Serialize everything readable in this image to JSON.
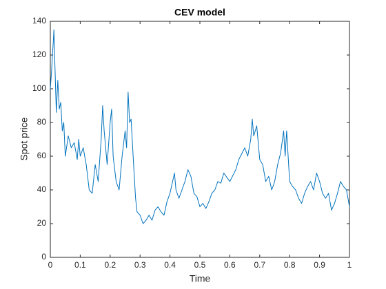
{
  "chart_data": {
    "type": "line",
    "title": "CEV model",
    "xlabel": "Time",
    "ylabel": "Spot price",
    "x": [
      0,
      0.004,
      0.007,
      0.01,
      0.012,
      0.016,
      0.02,
      0.025,
      0.03,
      0.035,
      0.04,
      0.045,
      0.05,
      0.06,
      0.07,
      0.08,
      0.09,
      0.095,
      0.1,
      0.11,
      0.12,
      0.13,
      0.14,
      0.15,
      0.16,
      0.17,
      0.175,
      0.18,
      0.19,
      0.2,
      0.205,
      0.21,
      0.22,
      0.23,
      0.24,
      0.25,
      0.255,
      0.26,
      0.265,
      0.27,
      0.28,
      0.285,
      0.29,
      0.3,
      0.31,
      0.32,
      0.33,
      0.34,
      0.35,
      0.36,
      0.37,
      0.38,
      0.39,
      0.4,
      0.415,
      0.42,
      0.43,
      0.44,
      0.45,
      0.46,
      0.47,
      0.48,
      0.49,
      0.5,
      0.51,
      0.52,
      0.53,
      0.54,
      0.55,
      0.56,
      0.57,
      0.58,
      0.6,
      0.62,
      0.63,
      0.65,
      0.66,
      0.67,
      0.675,
      0.68,
      0.69,
      0.7,
      0.71,
      0.72,
      0.73,
      0.74,
      0.75,
      0.76,
      0.77,
      0.78,
      0.785,
      0.79,
      0.8,
      0.81,
      0.82,
      0.83,
      0.84,
      0.85,
      0.86,
      0.87,
      0.88,
      0.89,
      0.9,
      0.91,
      0.92,
      0.93,
      0.94,
      0.95,
      0.96,
      0.97,
      0.98,
      0.99,
      1
    ],
    "series": [
      {
        "name": "Spot price",
        "color": "#0072bd",
        "values": [
          100,
          110,
          120,
          128,
          135,
          110,
          86,
          105,
          88,
          92,
          75,
          80,
          60,
          72,
          65,
          68,
          58,
          70,
          60,
          65,
          55,
          40,
          38,
          55,
          45,
          70,
          90,
          75,
          55,
          80,
          88,
          60,
          45,
          40,
          60,
          75,
          65,
          98,
          80,
          82,
          50,
          35,
          27,
          25,
          20,
          22,
          25,
          22,
          28,
          30,
          27,
          25,
          33,
          38,
          50,
          40,
          35,
          40,
          45,
          52,
          48,
          38,
          36,
          30,
          32,
          29,
          33,
          38,
          40,
          45,
          44,
          50,
          45,
          52,
          58,
          65,
          60,
          70,
          82,
          72,
          78,
          58,
          55,
          45,
          48,
          40,
          45,
          55,
          62,
          75,
          60,
          75,
          45,
          42,
          40,
          35,
          32,
          38,
          42,
          45,
          40,
          50,
          45,
          38,
          35,
          38,
          28,
          32,
          38,
          45,
          42,
          40,
          30
        ]
      }
    ],
    "xlim": [
      0,
      1
    ],
    "xticks": [
      0,
      0.1,
      0.2,
      0.3,
      0.4,
      0.5,
      0.6,
      0.7,
      0.8,
      0.9,
      1
    ],
    "ylim": [
      0,
      140
    ],
    "yticks": [
      0,
      20,
      40,
      60,
      80,
      100,
      120,
      140
    ]
  }
}
